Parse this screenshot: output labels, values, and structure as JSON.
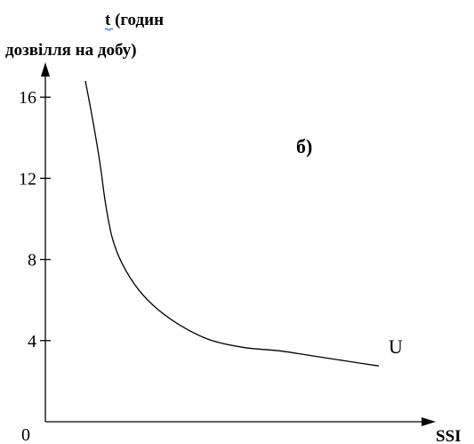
{
  "chart_data": {
    "type": "line",
    "ylabel_line1": "t (годин",
    "ylabel_line2": "дозвілля на добу)",
    "xlabel": "SSI",
    "panel_label": "б)",
    "origin_label": "0",
    "y_ticks": [
      4,
      8,
      12,
      16
    ],
    "ylim": [
      0,
      17.8
    ],
    "xlim": [
      0,
      11
    ],
    "grid": false,
    "legend": "none",
    "series": [
      {
        "name": "U",
        "x": [
          1.2,
          1.45,
          1.65,
          1.8,
          2.0,
          2.3,
          2.8,
          3.4,
          4.2,
          5.0,
          6.0,
          7.0,
          8.0,
          9.0,
          10.0
        ],
        "y": [
          16.8,
          14.6,
          12.6,
          10.8,
          9.1,
          7.8,
          6.5,
          5.5,
          4.6,
          4.0,
          3.65,
          3.5,
          3.25,
          3.0,
          2.75
        ]
      }
    ]
  }
}
